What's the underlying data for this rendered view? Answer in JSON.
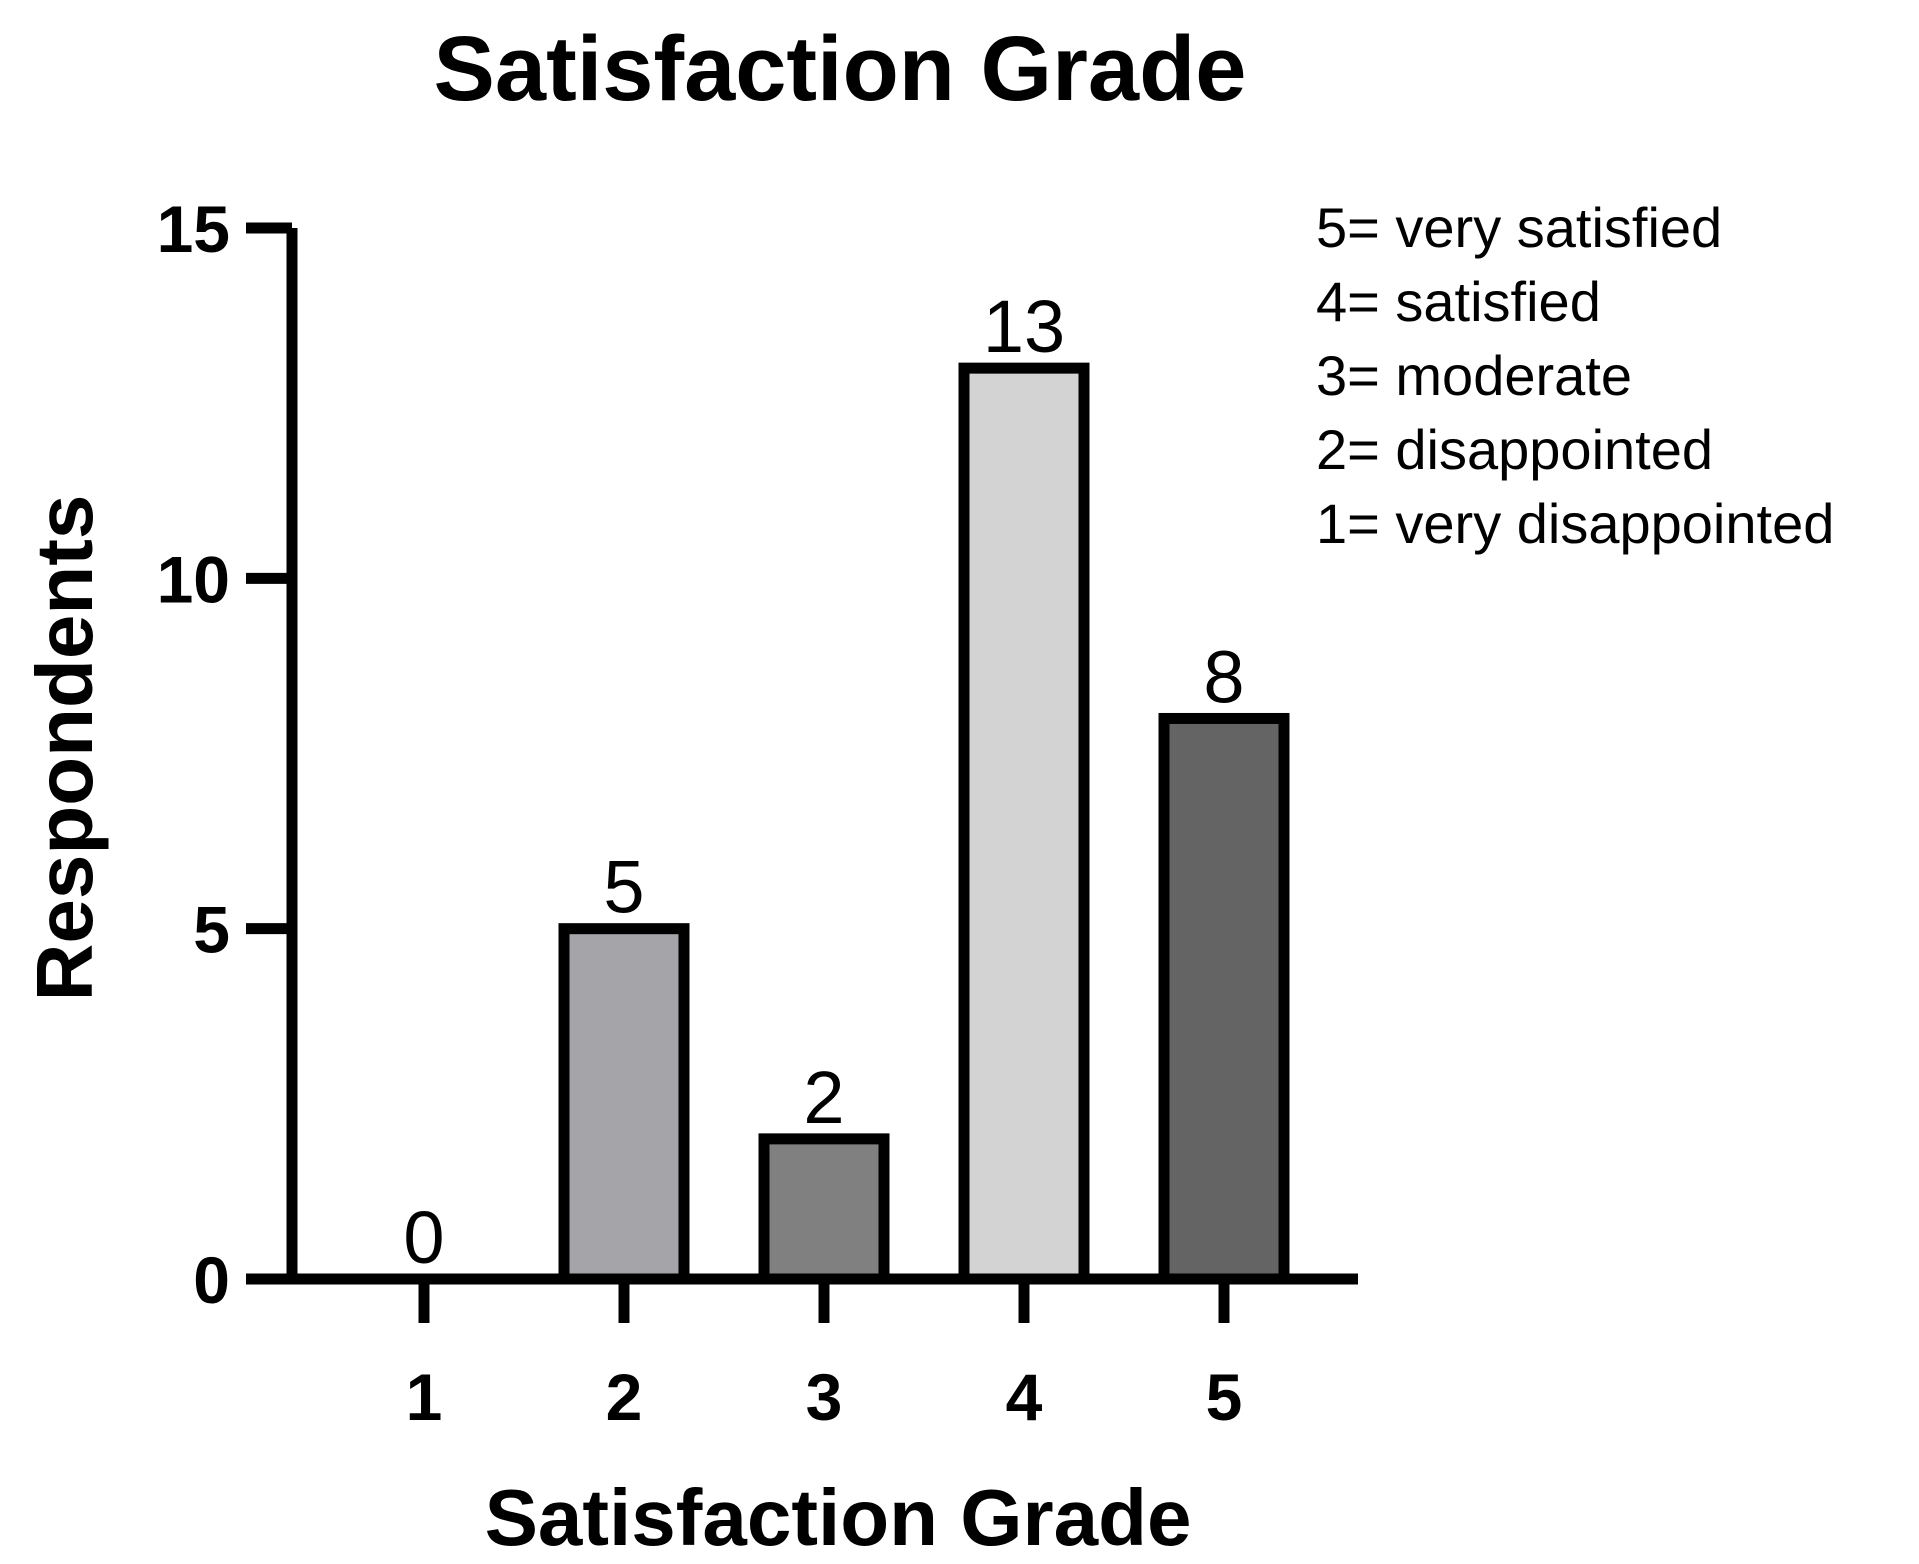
{
  "chart_data": {
    "type": "bar",
    "title": "Satisfaction Grade",
    "xlabel": "Satisfaction Grade",
    "ylabel": "Respondents",
    "categories": [
      "1",
      "2",
      "3",
      "4",
      "5"
    ],
    "values": [
      0,
      5,
      2,
      13,
      8
    ],
    "data_labels": [
      "0",
      "5",
      "2",
      "13",
      "8"
    ],
    "bar_colors": [
      "#ffffff",
      "#a5a4a8",
      "#808080",
      "#d3d3d3",
      "#646464"
    ],
    "ylim": [
      0,
      15
    ],
    "yticks": [
      0,
      5,
      10,
      15
    ],
    "ytick_labels": [
      "0",
      "5",
      "10",
      "15"
    ],
    "grid": false,
    "legend_position": "top-right",
    "annotations": [
      "5= very satisfied",
      "4= satisfied",
      "3= moderate",
      "2= disappointed",
      "1= very disappointed"
    ]
  }
}
